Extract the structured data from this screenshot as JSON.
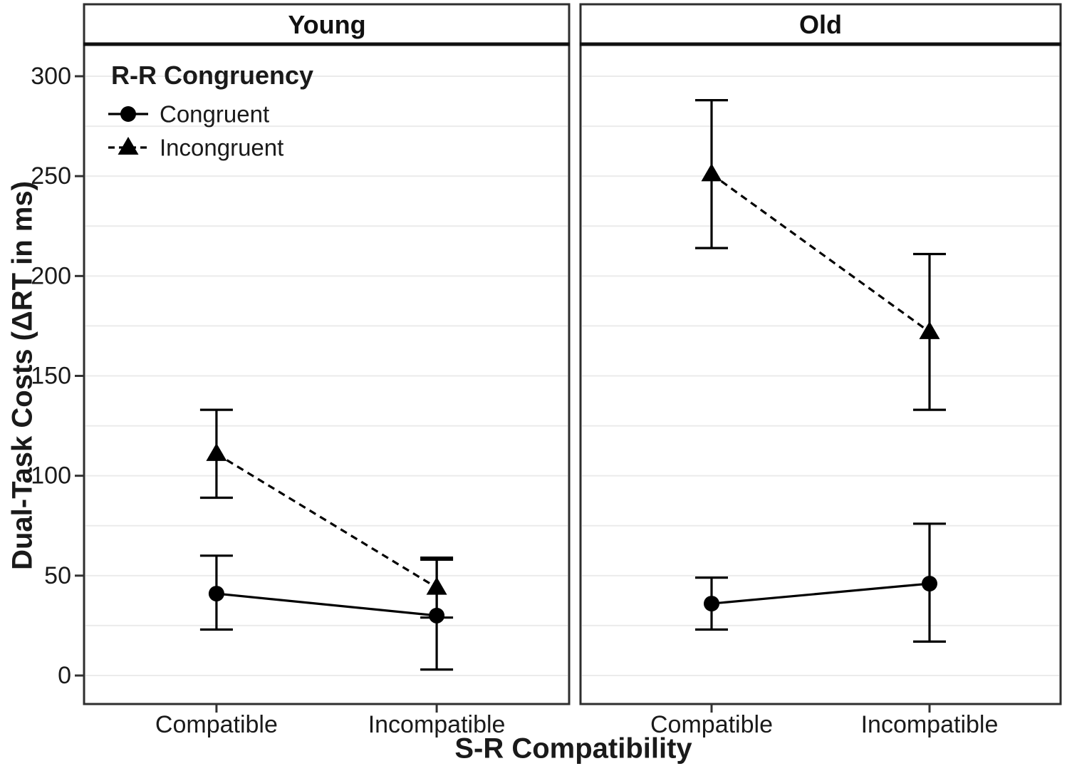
{
  "chart_data": {
    "type": "line",
    "subtype": "point-range interaction plot, faceted",
    "xlabel": "S-R Compatibility",
    "ylabel": "Dual-Task Costs (ΔRT in ms)",
    "categories": [
      "Compatible",
      "Incompatible"
    ],
    "yticks": [
      0,
      50,
      100,
      150,
      200,
      250,
      300
    ],
    "ylim": [
      -14,
      315
    ],
    "grid": true,
    "grid_step": 25,
    "legend": {
      "title": "R-R Congruency",
      "position": "top-left-inside",
      "entries": [
        {
          "label": "Congruent",
          "marker": "circle",
          "linestyle": "solid"
        },
        {
          "label": "Incongruent",
          "marker": "triangle",
          "linestyle": "dashed"
        }
      ]
    },
    "facets": [
      {
        "label": "Young",
        "series": [
          {
            "name": "Congruent",
            "marker": "circle",
            "linestyle": "solid",
            "points": [
              {
                "category": "Compatible",
                "mean": 41,
                "ci_low": 23,
                "ci_high": 60
              },
              {
                "category": "Incompatible",
                "mean": 30,
                "ci_low": 3,
                "ci_high": 58
              }
            ]
          },
          {
            "name": "Incongruent",
            "marker": "triangle",
            "linestyle": "dashed",
            "points": [
              {
                "category": "Compatible",
                "mean": 111,
                "ci_low": 89,
                "ci_high": 133
              },
              {
                "category": "Incompatible",
                "mean": 44,
                "ci_low": 29,
                "ci_high": 59
              }
            ]
          }
        ]
      },
      {
        "label": "Old",
        "series": [
          {
            "name": "Congruent",
            "marker": "circle",
            "linestyle": "solid",
            "points": [
              {
                "category": "Compatible",
                "mean": 36,
                "ci_low": 23,
                "ci_high": 49
              },
              {
                "category": "Incompatible",
                "mean": 46,
                "ci_low": 17,
                "ci_high": 76
              }
            ]
          },
          {
            "name": "Incongruent",
            "marker": "triangle",
            "linestyle": "dashed",
            "points": [
              {
                "category": "Compatible",
                "mean": 251,
                "ci_low": 214,
                "ci_high": 288
              },
              {
                "category": "Incompatible",
                "mean": 172,
                "ci_low": 133,
                "ci_high": 211
              }
            ]
          }
        ]
      }
    ]
  },
  "colors": {
    "data": "#000000",
    "text": "#1a1a1a",
    "gridline": "#ebebeb",
    "panel_border": "#2e2e2e",
    "strip_separator": "#111111",
    "tick": "#333333",
    "background": "#ffffff"
  }
}
